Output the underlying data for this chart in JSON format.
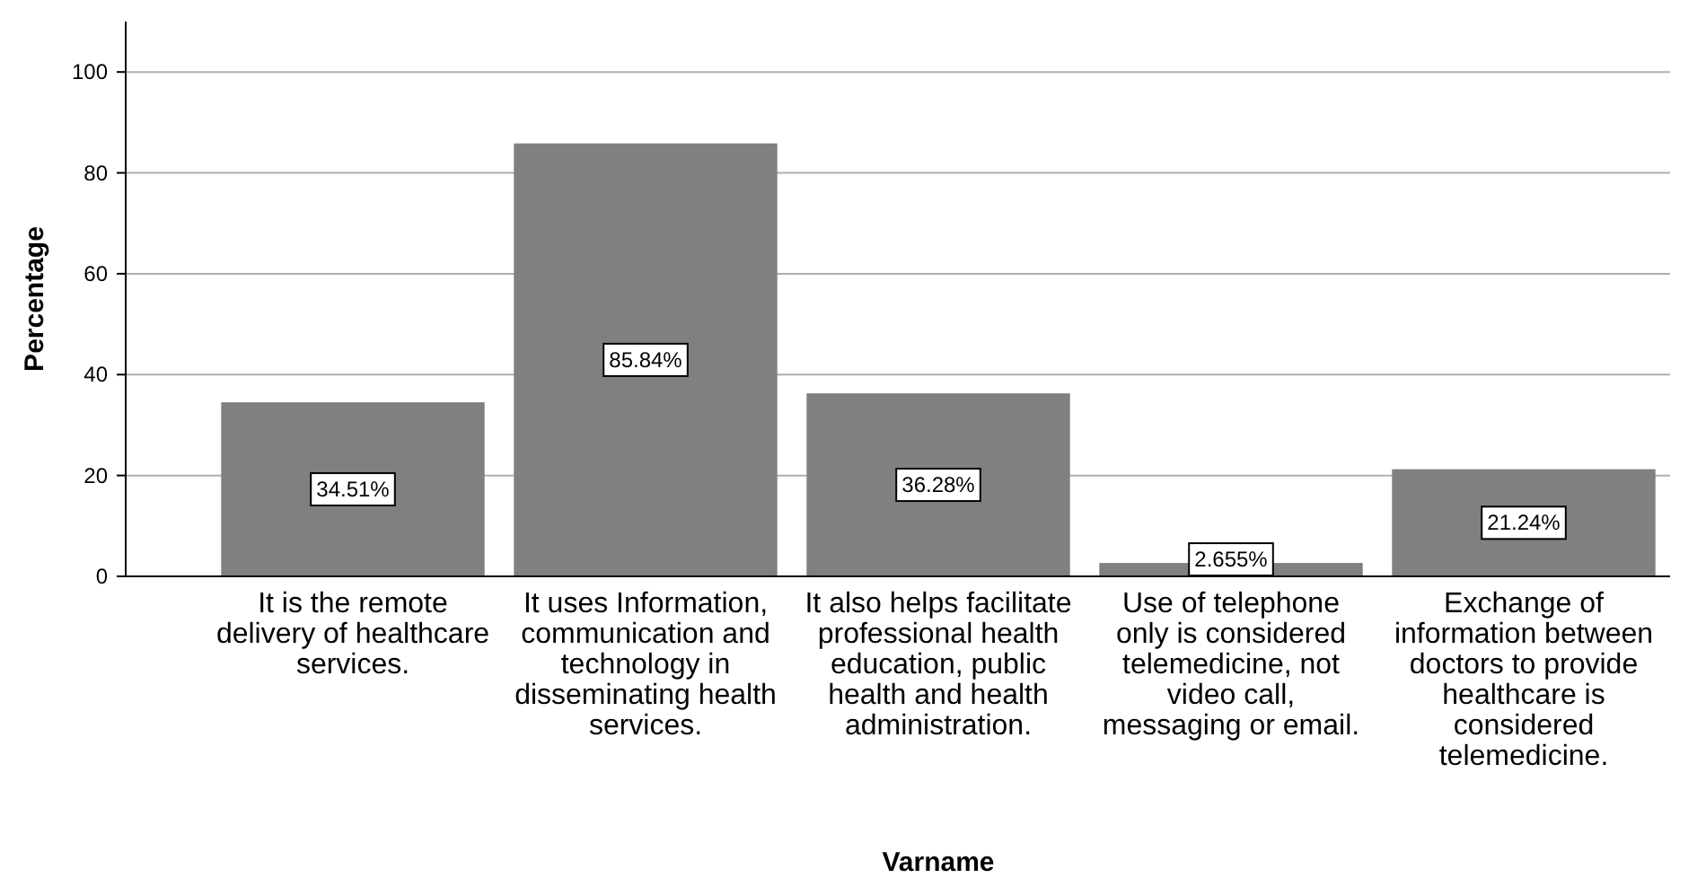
{
  "chart_data": {
    "type": "bar",
    "xlabel": "Varname",
    "ylabel": "Percentage",
    "categories": [
      "It is the remote delivery of healthcare services.",
      "It uses Information, communication and technology in disseminating health services.",
      "It also helps facilitate professional health education, public health and health administration.",
      "Use of telephone only is considered telemedicine, not video call, messaging or email.",
      "Exchange of information between doctors to provide healthcare is considered telemedicine."
    ],
    "values": [
      34.51,
      85.84,
      36.28,
      2.655,
      21.24
    ],
    "value_labels": [
      "34.51%",
      "85.84%",
      "36.28%",
      "2.655%",
      "21.24%"
    ],
    "color": "#808080",
    "ylim": [
      0,
      110
    ],
    "yticks": [
      0,
      20,
      40,
      60,
      80,
      100
    ],
    "grid": "y"
  }
}
